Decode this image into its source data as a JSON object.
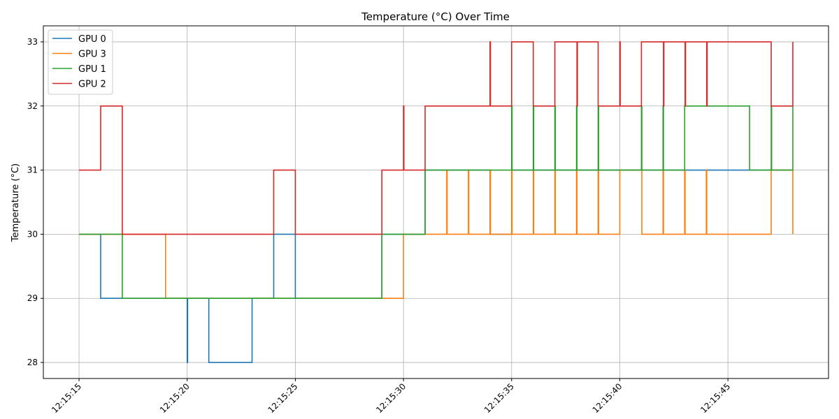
{
  "chart_data": {
    "type": "line",
    "step": "post",
    "title": "Temperature (°C) Over Time",
    "xlabel": "",
    "ylabel": "Temperature (°C)",
    "x_tick_labels": [
      "12:15:15",
      "12:15:20",
      "12:15:25",
      "12:15:30",
      "12:15:35",
      "12:15:40",
      "12:15:45"
    ],
    "x_tick_values": [
      15,
      20,
      25,
      30,
      35,
      40,
      45
    ],
    "y_ticks": [
      28,
      29,
      30,
      31,
      32,
      33
    ],
    "xlim": [
      13.35,
      49.65
    ],
    "ylim": [
      27.75,
      33.25
    ],
    "grid": true,
    "legend_position": "top-left",
    "series": [
      {
        "name": "GPU 0",
        "color": "#1f77b4",
        "points": [
          [
            15,
            30
          ],
          [
            16,
            29
          ],
          [
            17,
            29
          ],
          [
            18,
            29
          ],
          [
            19,
            29
          ],
          [
            20,
            28
          ],
          [
            20.02,
            29
          ],
          [
            21,
            28
          ],
          [
            22,
            28
          ],
          [
            23,
            29
          ],
          [
            24,
            30
          ],
          [
            25,
            29
          ],
          [
            26,
            29
          ],
          [
            27,
            29
          ],
          [
            28,
            29
          ],
          [
            29,
            30
          ],
          [
            30,
            30
          ],
          [
            31,
            31
          ],
          [
            32,
            31
          ],
          [
            33,
            31
          ],
          [
            34,
            30
          ],
          [
            35,
            31
          ],
          [
            36,
            31
          ],
          [
            37,
            31
          ],
          [
            38,
            31
          ],
          [
            39,
            31
          ],
          [
            40,
            31
          ],
          [
            41,
            31
          ],
          [
            42,
            31
          ],
          [
            43,
            31
          ],
          [
            44,
            31
          ],
          [
            45,
            31
          ],
          [
            46,
            31
          ],
          [
            47,
            31
          ],
          [
            48,
            31
          ]
        ]
      },
      {
        "name": "GPU 3",
        "color": "#ff7f0e",
        "points": [
          [
            15,
            30
          ],
          [
            16,
            30
          ],
          [
            17,
            30
          ],
          [
            18,
            30
          ],
          [
            19,
            29
          ],
          [
            20,
            29
          ],
          [
            21,
            29
          ],
          [
            22,
            29
          ],
          [
            23,
            29
          ],
          [
            24,
            29
          ],
          [
            25,
            29
          ],
          [
            26,
            29
          ],
          [
            27,
            29
          ],
          [
            28,
            29
          ],
          [
            29,
            29
          ],
          [
            30,
            30
          ],
          [
            31,
            30
          ],
          [
            32,
            31
          ],
          [
            32.02,
            30
          ],
          [
            33,
            31
          ],
          [
            33.02,
            30
          ],
          [
            34,
            31
          ],
          [
            34.02,
            30
          ],
          [
            35,
            31
          ],
          [
            35.02,
            30
          ],
          [
            36,
            31
          ],
          [
            36.02,
            30
          ],
          [
            37,
            31
          ],
          [
            37.02,
            30
          ],
          [
            38,
            31
          ],
          [
            38.02,
            30
          ],
          [
            39,
            31
          ],
          [
            39.02,
            30
          ],
          [
            40,
            31
          ],
          [
            41,
            31
          ],
          [
            41.02,
            30
          ],
          [
            42,
            31
          ],
          [
            42.02,
            30
          ],
          [
            43,
            31
          ],
          [
            43.02,
            30
          ],
          [
            44,
            31
          ],
          [
            44.02,
            30
          ],
          [
            45,
            30
          ],
          [
            46,
            30
          ],
          [
            47,
            31
          ],
          [
            48,
            30
          ]
        ]
      },
      {
        "name": "GPU 1",
        "color": "#2ca02c",
        "points": [
          [
            15,
            30
          ],
          [
            16,
            30
          ],
          [
            17,
            29
          ],
          [
            18,
            29
          ],
          [
            19,
            29
          ],
          [
            20,
            29
          ],
          [
            21,
            29
          ],
          [
            22,
            29
          ],
          [
            23,
            29
          ],
          [
            24,
            29
          ],
          [
            25,
            29
          ],
          [
            26,
            29
          ],
          [
            27,
            29
          ],
          [
            28,
            29
          ],
          [
            29,
            30
          ],
          [
            30,
            30
          ],
          [
            31,
            31
          ],
          [
            32,
            31
          ],
          [
            33,
            31
          ],
          [
            34,
            31
          ],
          [
            35,
            32
          ],
          [
            35.02,
            31
          ],
          [
            36,
            32
          ],
          [
            36.02,
            31
          ],
          [
            37,
            32
          ],
          [
            37.02,
            31
          ],
          [
            38,
            32
          ],
          [
            38.02,
            31
          ],
          [
            39,
            32
          ],
          [
            39.02,
            31
          ],
          [
            40,
            31
          ],
          [
            41,
            32
          ],
          [
            41.02,
            31
          ],
          [
            42,
            32
          ],
          [
            42.02,
            31
          ],
          [
            43,
            32
          ],
          [
            44,
            32
          ],
          [
            45,
            32
          ],
          [
            46,
            31
          ],
          [
            47,
            32
          ],
          [
            47.02,
            31
          ],
          [
            48,
            32
          ]
        ]
      },
      {
        "name": "GPU 2",
        "color": "#d62728",
        "points": [
          [
            15,
            31
          ],
          [
            16,
            32
          ],
          [
            17,
            30
          ],
          [
            18,
            30
          ],
          [
            19,
            30
          ],
          [
            20,
            30
          ],
          [
            21,
            30
          ],
          [
            22,
            30
          ],
          [
            23,
            30
          ],
          [
            24,
            31
          ],
          [
            25,
            30
          ],
          [
            26,
            30
          ],
          [
            27,
            30
          ],
          [
            28,
            30
          ],
          [
            29,
            31
          ],
          [
            30,
            32
          ],
          [
            30.02,
            31
          ],
          [
            31,
            32
          ],
          [
            32,
            32
          ],
          [
            33,
            32
          ],
          [
            34,
            33
          ],
          [
            34.02,
            32
          ],
          [
            35,
            33
          ],
          [
            36,
            32
          ],
          [
            37,
            33
          ],
          [
            38,
            33
          ],
          [
            38.02,
            32
          ],
          [
            38.04,
            33
          ],
          [
            39,
            32
          ],
          [
            40,
            33
          ],
          [
            40.02,
            32
          ],
          [
            41,
            33
          ],
          [
            42,
            33
          ],
          [
            42.02,
            32
          ],
          [
            42.04,
            33
          ],
          [
            43,
            33
          ],
          [
            43.02,
            32
          ],
          [
            43.04,
            33
          ],
          [
            44,
            33
          ],
          [
            44.02,
            32
          ],
          [
            44.04,
            33
          ],
          [
            45,
            33
          ],
          [
            46,
            33
          ],
          [
            47,
            32
          ],
          [
            48,
            33
          ]
        ]
      }
    ]
  }
}
